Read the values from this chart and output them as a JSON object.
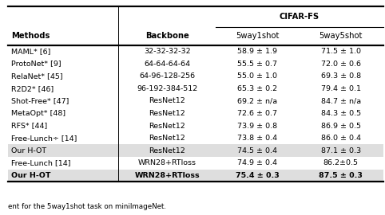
{
  "col_headers": [
    "Methods",
    "Backbone",
    "5way1shot",
    "5way5shot"
  ],
  "super_header": "CIFAR-FS",
  "rows": [
    [
      "MAML* [6]",
      "32-32-32-32",
      "58.9 ± 1.9",
      "71.5 ± 1.0"
    ],
    [
      "ProtoNet* [9]",
      "64-64-64-64",
      "55.5 ± 0.7",
      "72.0 ± 0.6"
    ],
    [
      "RelaNet* [45]",
      "64-96-128-256",
      "55.0 ± 1.0",
      "69.3 ± 0.8"
    ],
    [
      "R2D2* [46]",
      "96-192-384-512",
      "65.3 ± 0.2",
      "79.4 ± 0.1"
    ],
    [
      "Shot-Free* [47]",
      "ResNet12",
      "69.2 ± n/a",
      "84.7 ± n/a"
    ],
    [
      "MetaOpt* [48]",
      "ResNet12",
      "72.6 ± 0.7",
      "84.3 ± 0.5"
    ],
    [
      "RFS* [44]",
      "ResNet12",
      "73.9 ± 0.8",
      "86.9 ± 0.5"
    ],
    [
      "Free-Lunch÷ [14]",
      "ResNet12",
      "73.8 ± 0.4",
      "86.0 ± 0.4"
    ],
    [
      "Our H-OT",
      "ResNet12",
      "74.5 ± 0.4",
      "87.1 ± 0.3"
    ],
    [
      "Free-Lunch [14]",
      "WRN28+RTloss",
      "74.9 ± 0.4",
      "86.2±0.5"
    ],
    [
      "Our H-OT",
      "WRN28+RTloss",
      "75.4 ± 0.3",
      "87.5 ± 0.3"
    ]
  ],
  "bold_rows": [
    10
  ],
  "shaded_rows": [
    8,
    10
  ],
  "figsize": [
    4.82,
    2.7
  ],
  "dpi": 100,
  "font_size": 6.8,
  "header_font_size": 7.2,
  "bg_color": "#ffffff",
  "shade_color": "#dedede",
  "line_color": "#000000",
  "text_color": "#000000",
  "caption": "ent for the 5way1shot task on miniImageNet."
}
